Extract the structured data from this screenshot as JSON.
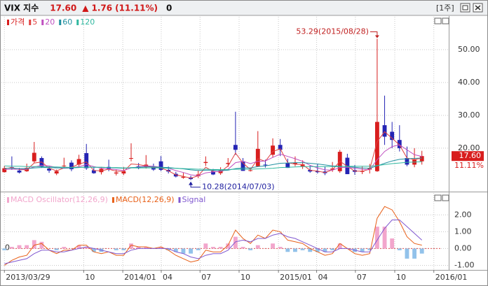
{
  "header": {
    "name": "VIX 지수",
    "price": "17.60",
    "arrow": "▲",
    "change": "1.76",
    "change_pct": "(11.11%)",
    "volume": "0",
    "period": "[1주]"
  },
  "chart_data": [
    {
      "type": "candlestick",
      "up_color": "#d81e1e",
      "down_color": "#2424b4",
      "xlim": [
        -0.4,
        59.6
      ],
      "ylim": [
        7,
        60
      ],
      "yticks": [
        {
          "value": 20,
          "label": "20.00"
        },
        {
          "value": 30,
          "label": "30.00"
        },
        {
          "value": 40,
          "label": "40.00"
        },
        {
          "value": 50,
          "label": "50.00"
        }
      ],
      "grid": true,
      "price_name": "가격",
      "price_color": "#d81e1e",
      "last_price_label": "17.60",
      "last_change_label": "11.11%",
      "annotations": [
        "53.29(2015/08/28)",
        "10.28(2014/07/03)"
      ],
      "candles": [
        [
          12.7,
          14.6,
          12.6,
          13.9
        ],
        [
          14.2,
          17.5,
          13.4,
          14.0
        ],
        [
          13.2,
          14.0,
          12.3,
          12.6
        ],
        [
          13.0,
          15.3,
          12.8,
          14.0
        ],
        [
          16.0,
          21.9,
          15.5,
          18.6
        ],
        [
          17.0,
          17.5,
          14.0,
          14.3
        ],
        [
          13.8,
          14.5,
          12.5,
          13.2
        ],
        [
          12.3,
          13.5,
          11.8,
          13.0
        ],
        [
          14.5,
          17.1,
          13.8,
          14.7
        ],
        [
          15.6,
          16.3,
          13.0,
          13.6
        ],
        [
          15.0,
          18.0,
          14.5,
          16.7
        ],
        [
          18.5,
          21.3,
          13.4,
          13.9
        ],
        [
          13.3,
          14.1,
          12.2,
          12.4
        ],
        [
          12.7,
          14.3,
          12.0,
          13.7
        ],
        [
          14.3,
          16.5,
          13.0,
          13.8
        ],
        [
          12.3,
          13.6,
          11.7,
          12.6
        ],
        [
          12.3,
          14.3,
          11.8,
          13.0
        ],
        [
          16.8,
          21.5,
          16.0,
          17.0
        ],
        [
          14.5,
          15.5,
          13.6,
          13.9
        ],
        [
          14.2,
          17.9,
          13.8,
          15.0
        ],
        [
          14.4,
          15.3,
          13.1,
          13.5
        ],
        [
          16.0,
          17.6,
          13.0,
          13.4
        ],
        [
          13.4,
          14.4,
          12.3,
          12.9
        ],
        [
          12.2,
          12.8,
          11.1,
          11.4
        ],
        [
          11.0,
          12.5,
          10.7,
          11.3
        ],
        [
          11.1,
          11.6,
          10.28,
          10.6
        ],
        [
          11.5,
          13.2,
          10.9,
          12.0
        ],
        [
          15.5,
          17.5,
          14.6,
          15.8
        ],
        [
          13.0,
          13.7,
          11.8,
          12.0
        ],
        [
          12.4,
          14.2,
          11.9,
          13.3
        ],
        [
          15.2,
          17.0,
          14.3,
          15.5
        ],
        [
          21.0,
          31.1,
          18.0,
          19.5
        ],
        [
          16.0,
          17.0,
          13.1,
          13.1
        ],
        [
          13.2,
          14.1,
          12.9,
          13.3
        ],
        [
          14.5,
          25.2,
          14.3,
          19.8
        ],
        [
          15.0,
          16.5,
          14.1,
          14.8
        ],
        [
          18.0,
          23.0,
          17.2,
          20.8
        ],
        [
          21.0,
          22.8,
          17.6,
          19.5
        ],
        [
          15.5,
          16.8,
          14.0,
          14.0
        ],
        [
          15.2,
          17.5,
          14.5,
          15.5
        ],
        [
          14.5,
          16.3,
          13.7,
          15.1
        ],
        [
          13.4,
          14.7,
          12.5,
          12.9
        ],
        [
          13.0,
          15.2,
          12.3,
          12.7
        ],
        [
          12.9,
          14.4,
          11.8,
          12.4
        ],
        [
          13.5,
          15.8,
          12.8,
          13.8
        ],
        [
          13.0,
          19.5,
          12.5,
          18.9
        ],
        [
          17.1,
          18.3,
          12.1,
          12.1
        ],
        [
          13.3,
          14.9,
          11.9,
          12.8
        ],
        [
          12.8,
          14.4,
          12.1,
          13.0
        ],
        [
          13.5,
          15.2,
          12.3,
          13.9
        ],
        [
          13.0,
          53.29,
          12.8,
          28.0
        ],
        [
          27.0,
          36.0,
          21.0,
          23.5
        ],
        [
          25.0,
          28.0,
          20.0,
          22.5
        ],
        [
          22.5,
          27.0,
          19.0,
          20.0
        ],
        [
          17.0,
          20.5,
          14.5,
          15.0
        ],
        [
          15.0,
          20.0,
          14.2,
          16.5
        ],
        [
          16.0,
          19.2,
          15.0,
          17.6
        ]
      ],
      "series": [
        {
          "name": "5",
          "color": "#e04040",
          "values": [
            13.8,
            14.1,
            13.5,
            13.4,
            15.5,
            15.8,
            13.9,
            13.1,
            14.0,
            14.2,
            15.2,
            15.8,
            13.2,
            13.1,
            13.6,
            13.0,
            12.9,
            15.2,
            15.0,
            14.6,
            14.1,
            14.0,
            13.1,
            11.9,
            11.4,
            10.9,
            11.6,
            14.2,
            12.9,
            12.8,
            14.6,
            18.5,
            15.5,
            13.5,
            16.8,
            16.0,
            19.0,
            19.8,
            15.6,
            15.1,
            15.0,
            13.3,
            13.0,
            12.6,
            13.4,
            16.0,
            14.5,
            13.0,
            13.0,
            13.6,
            22.0,
            25.0,
            23.0,
            21.0,
            17.0,
            16.5,
            17.0
          ]
        },
        {
          "name": "20",
          "color": "#c050c0",
          "values": [
            13.5,
            13.6,
            13.6,
            13.6,
            14.3,
            14.8,
            14.6,
            14.1,
            13.9,
            14.0,
            14.4,
            15.0,
            14.4,
            13.9,
            13.7,
            13.5,
            13.2,
            14.0,
            14.3,
            14.6,
            14.5,
            14.2,
            13.9,
            13.2,
            12.6,
            11.9,
            11.6,
            12.5,
            12.8,
            12.9,
            13.6,
            15.6,
            16.0,
            15.3,
            16.0,
            16.1,
            17.2,
            18.2,
            17.5,
            16.8,
            16.0,
            14.8,
            14.0,
            13.4,
            13.3,
            14.1,
            14.2,
            13.9,
            13.6,
            13.4,
            16.5,
            19.0,
            20.5,
            21.0,
            19.5,
            18.0,
            17.5
          ]
        },
        {
          "name": "60",
          "color": "#2090a0",
          "values": [
            13.9,
            13.9,
            13.8,
            13.8,
            14.0,
            14.1,
            14.1,
            14.0,
            14.0,
            14.0,
            14.1,
            14.3,
            14.2,
            14.2,
            14.1,
            14.0,
            13.9,
            14.1,
            14.2,
            14.3,
            14.3,
            14.2,
            14.1,
            13.9,
            13.7,
            13.4,
            13.2,
            13.3,
            13.3,
            13.2,
            13.3,
            13.8,
            14.0,
            14.0,
            14.4,
            14.6,
            15.0,
            15.4,
            15.5,
            15.6,
            15.6,
            15.4,
            15.2,
            14.9,
            14.6,
            14.5,
            14.4,
            14.2,
            14.0,
            13.9,
            14.6,
            15.4,
            16.1,
            16.6,
            16.8,
            16.9,
            17.0
          ]
        },
        {
          "name": "120",
          "color": "#30b8a0",
          "values": [
            14.6,
            14.5,
            14.5,
            14.4,
            14.4,
            14.4,
            14.3,
            14.3,
            14.2,
            14.2,
            14.2,
            14.2,
            14.2,
            14.2,
            14.1,
            14.1,
            14.0,
            14.0,
            14.0,
            14.0,
            14.0,
            14.0,
            13.9,
            13.9,
            13.8,
            13.7,
            13.6,
            13.6,
            13.5,
            13.5,
            13.5,
            13.6,
            13.6,
            13.6,
            13.7,
            13.8,
            13.9,
            14.1,
            14.2,
            14.3,
            14.4,
            14.4,
            14.4,
            14.4,
            14.4,
            14.4,
            14.5,
            14.5,
            14.5,
            14.5,
            14.7,
            15.0,
            15.3,
            15.5,
            15.7,
            15.8,
            15.9
          ]
        }
      ]
    },
    {
      "type": "macd",
      "xlim": [
        -0.4,
        59.6
      ],
      "ylim": [
        -1.27,
        3.3
      ],
      "yticks": [
        {
          "value": -1,
          "label": "-1.00"
        },
        {
          "value": 0,
          "label": "0.00"
        },
        {
          "value": 1,
          "label": "1.00"
        },
        {
          "value": 2,
          "label": "2.00"
        }
      ],
      "zero_label": {
        "value": 0,
        "label": "0"
      },
      "grid": true,
      "xticks": [
        {
          "value": 0,
          "label": "2013/03/29"
        },
        {
          "value": 10.64,
          "label": "10"
        },
        {
          "value": 15.88,
          "label": "2014/01"
        },
        {
          "value": 21.04,
          "label": "04"
        },
        {
          "value": 26.24,
          "label": "07"
        },
        {
          "value": 31.48,
          "label": "10"
        },
        {
          "value": 36.76,
          "label": "2015/01"
        },
        {
          "value": 41.88,
          "label": "04"
        },
        {
          "value": 47.08,
          "label": "07"
        },
        {
          "value": 52.36,
          "label": "10"
        },
        {
          "value": 57.6,
          "label": "2016/01"
        }
      ],
      "oscillator": {
        "name": "MACD Oscillator(12,26,9)",
        "color": "#f2a6cc",
        "neg_color": "#92c2ea",
        "values": [
          -0.1,
          0.1,
          0.2,
          0.2,
          0.5,
          0.4,
          0.0,
          -0.1,
          0.1,
          0.0,
          0.2,
          0.1,
          -0.2,
          -0.2,
          0.0,
          -0.1,
          -0.1,
          0.3,
          0.1,
          0.1,
          0.0,
          0.1,
          -0.1,
          -0.2,
          -0.3,
          -0.3,
          -0.1,
          0.3,
          0.1,
          0.1,
          0.3,
          0.7,
          0.1,
          -0.1,
          0.2,
          0.0,
          0.3,
          0.1,
          -0.2,
          -0.2,
          -0.1,
          -0.2,
          -0.2,
          -0.2,
          -0.1,
          0.3,
          0.0,
          -0.2,
          -0.2,
          -0.1,
          1.3,
          1.3,
          0.6,
          -0.1,
          -0.6,
          -0.6,
          -0.3
        ]
      },
      "series": [
        {
          "name": "MACD(12,26,9)",
          "color": "#e86018",
          "values": [
            -1.0,
            -0.7,
            -0.5,
            -0.4,
            0.2,
            0.3,
            -0.1,
            -0.3,
            -0.1,
            -0.1,
            0.2,
            0.2,
            -0.2,
            -0.3,
            -0.2,
            -0.4,
            -0.4,
            0.2,
            0.1,
            0.1,
            0.0,
            0.1,
            -0.1,
            -0.4,
            -0.6,
            -0.8,
            -0.7,
            -0.1,
            -0.2,
            -0.2,
            0.2,
            1.1,
            0.6,
            0.3,
            0.8,
            0.6,
            1.1,
            1.0,
            0.5,
            0.4,
            0.3,
            0.0,
            -0.2,
            -0.4,
            -0.3,
            0.3,
            0.0,
            -0.3,
            -0.4,
            -0.3,
            1.8,
            2.5,
            2.3,
            1.6,
            0.7,
            0.3,
            0.2
          ]
        },
        {
          "name": "Signal",
          "color": "#8058d0",
          "values": [
            -0.9,
            -0.8,
            -0.7,
            -0.6,
            -0.3,
            -0.1,
            -0.1,
            -0.2,
            -0.2,
            -0.1,
            0.0,
            0.1,
            0.0,
            -0.1,
            -0.2,
            -0.3,
            -0.3,
            -0.1,
            0.0,
            0.0,
            0.0,
            0.0,
            0.0,
            -0.2,
            -0.3,
            -0.5,
            -0.6,
            -0.4,
            -0.3,
            -0.3,
            -0.1,
            0.4,
            0.5,
            0.4,
            0.6,
            0.6,
            0.8,
            0.9,
            0.7,
            0.6,
            0.4,
            0.2,
            0.0,
            -0.2,
            -0.2,
            0.0,
            0.0,
            -0.1,
            -0.2,
            -0.2,
            0.5,
            1.2,
            1.7,
            1.7,
            1.3,
            0.9,
            0.5
          ]
        }
      ]
    }
  ]
}
